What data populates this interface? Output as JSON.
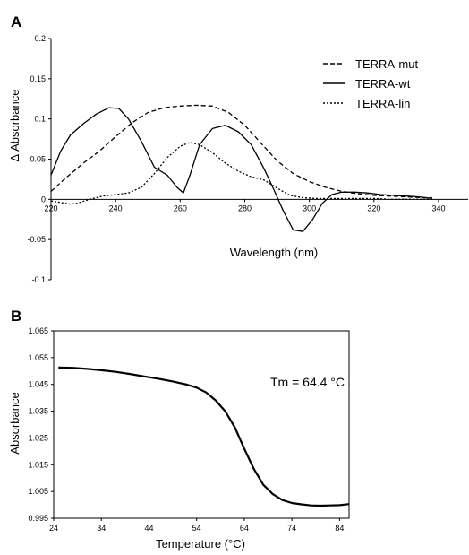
{
  "panels": [
    {
      "letter": "A"
    },
    {
      "letter": "B"
    }
  ],
  "chart_data": [
    {
      "type": "line",
      "panel": "A",
      "xlabel": "Wavelength (nm)",
      "ylabel": "Δ Absorbance",
      "xlim": [
        220,
        340
      ],
      "ylim": [
        -0.1,
        0.2
      ],
      "xticks": [
        220,
        240,
        260,
        280,
        300,
        320,
        340
      ],
      "yticks": [
        -0.1,
        -0.05,
        0,
        0.05,
        0.1,
        0.15,
        0.2
      ],
      "xtick_labels": [
        "220",
        "240",
        "260",
        "280",
        "300",
        "320",
        "340"
      ],
      "ytick_labels": [
        "-0.1",
        "-0.05",
        "0",
        "0.05",
        "0.1",
        "0.15",
        "0.2"
      ],
      "legend_position": "top-right",
      "grid": false,
      "series": [
        {
          "name": "TERRA-mut",
          "style": "dashed",
          "x": [
            220,
            225,
            230,
            235,
            240,
            245,
            250,
            255,
            260,
            265,
            270,
            275,
            280,
            285,
            290,
            295,
            300,
            305,
            310,
            315,
            320,
            325,
            330,
            335,
            338
          ],
          "y": [
            0.01,
            0.028,
            0.045,
            0.06,
            0.078,
            0.095,
            0.108,
            0.114,
            0.116,
            0.117,
            0.116,
            0.108,
            0.092,
            0.07,
            0.048,
            0.032,
            0.022,
            0.015,
            0.01,
            0.007,
            0.005,
            0.004,
            0.003,
            0.002,
            0.002
          ]
        },
        {
          "name": "TERRA-wt",
          "style": "solid",
          "x": [
            220,
            223,
            226,
            230,
            234,
            238,
            241,
            244,
            248,
            252,
            256,
            259,
            261,
            263,
            266,
            270,
            274,
            278,
            282,
            286,
            289,
            292,
            295,
            298,
            301,
            304,
            307,
            310,
            314,
            318,
            322,
            326,
            330,
            334,
            338
          ],
          "y": [
            0.03,
            0.06,
            0.08,
            0.094,
            0.106,
            0.114,
            0.113,
            0.1,
            0.072,
            0.04,
            0.03,
            0.015,
            0.008,
            0.03,
            0.068,
            0.088,
            0.092,
            0.084,
            0.068,
            0.038,
            0.012,
            -0.015,
            -0.038,
            -0.04,
            -0.025,
            -0.005,
            0.006,
            0.009,
            0.009,
            0.008,
            0.006,
            0.005,
            0.004,
            0.003,
            0.001
          ]
        },
        {
          "name": "TERRA-lin",
          "style": "dotted",
          "x": [
            220,
            223,
            226,
            228,
            232,
            236,
            240,
            244,
            248,
            252,
            256,
            260,
            263,
            266,
            270,
            274,
            278,
            282,
            286,
            290,
            294,
            298,
            302,
            306,
            310,
            315,
            320,
            325,
            330,
            335,
            338
          ],
          "y": [
            -0.002,
            -0.004,
            -0.006,
            -0.005,
            0.0,
            0.004,
            0.006,
            0.008,
            0.015,
            0.032,
            0.052,
            0.066,
            0.071,
            0.068,
            0.058,
            0.045,
            0.035,
            0.028,
            0.024,
            0.014,
            0.005,
            0.002,
            0.001,
            0.001,
            0.001,
            0.001,
            0.001,
            0.0,
            0.0,
            0.0,
            0.0
          ]
        }
      ]
    },
    {
      "type": "line",
      "panel": "B",
      "xlabel": "Temperature (°C)",
      "ylabel": "Absorbance",
      "xlim": [
        24,
        86
      ],
      "ylim": [
        0.995,
        1.065
      ],
      "xticks": [
        24,
        34,
        44,
        54,
        64,
        74,
        84
      ],
      "yticks": [
        0.995,
        1.005,
        1.015,
        1.025,
        1.035,
        1.045,
        1.055,
        1.065
      ],
      "xtick_labels": [
        "24",
        "34",
        "44",
        "54",
        "64",
        "74",
        "84"
      ],
      "ytick_labels": [
        "0.995",
        "1.005",
        "1.015",
        "1.025",
        "1.035",
        "1.045",
        "1.055",
        "1.065"
      ],
      "grid": false,
      "annotation": "Tm = 64.4 °C",
      "series": [
        {
          "style": "solid",
          "x": [
            25,
            28,
            31,
            34,
            37,
            40,
            43,
            46,
            49,
            52,
            54,
            56,
            58,
            60,
            62,
            64,
            66,
            68,
            70,
            72,
            74,
            76,
            78,
            80,
            82,
            84,
            86
          ],
          "y": [
            1.0513,
            1.0512,
            1.0508,
            1.0503,
            1.0497,
            1.0489,
            1.048,
            1.0471,
            1.0461,
            1.0449,
            1.0438,
            1.042,
            1.039,
            1.035,
            1.029,
            1.021,
            1.0135,
            1.0075,
            1.004,
            1.0018,
            1.0007,
            1.0002,
            0.9998,
            0.9997,
            0.9998,
            0.9999,
            1.0003
          ]
        }
      ]
    }
  ]
}
